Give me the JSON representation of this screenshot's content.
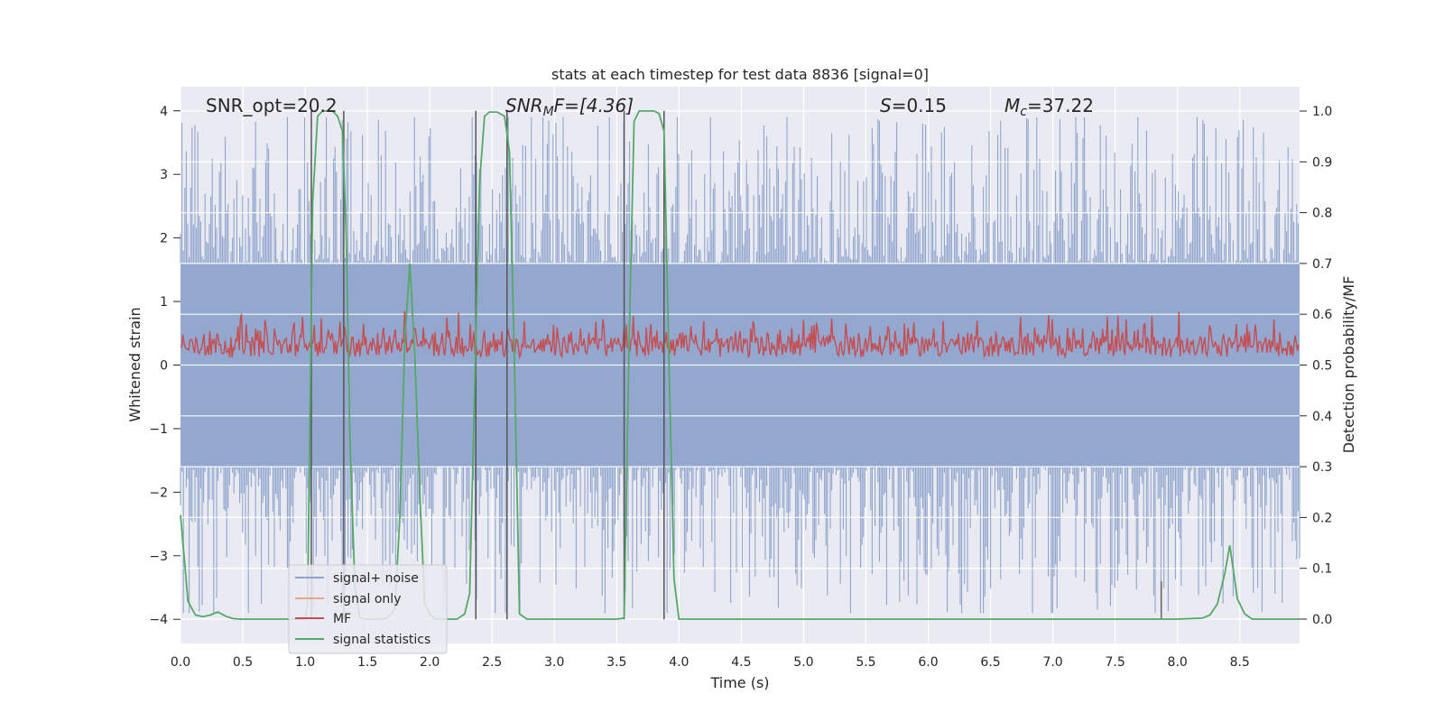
{
  "chart_data": {
    "type": "line",
    "title": "stats at each timestep for test data 8836 [signal=0]",
    "xlabel": "Time (s)",
    "ylabel": "Whitened strain",
    "y2label": "Detection probability/MF",
    "xlim": [
      0.0,
      8.98
    ],
    "ylim": [
      -4.38,
      4.38
    ],
    "y2lim": [
      -0.048,
      1.048
    ],
    "x_ticks": [
      "0.0",
      "0.5",
      "1.0",
      "1.5",
      "2.0",
      "2.5",
      "3.0",
      "3.5",
      "4.0",
      "4.5",
      "5.0",
      "5.5",
      "6.0",
      "6.5",
      "7.0",
      "7.5",
      "8.0",
      "8.5"
    ],
    "y_ticks": [
      "4",
      "3",
      "2",
      "1",
      "0",
      "−1",
      "−2",
      "−3",
      "−4"
    ],
    "y2_ticks": [
      "1.0",
      "0.9",
      "0.8",
      "0.7",
      "0.6",
      "0.5",
      "0.4",
      "0.3",
      "0.2",
      "0.1",
      "0.0"
    ],
    "annotations": {
      "snr_opt": "SNR_opt=20.2",
      "snr_mf_base": "SNR",
      "snr_mf_sub": "M",
      "snr_mf_rest": "F=[4.36]",
      "s_sym": "S",
      "s_val": "=0.15",
      "mc_base": "M",
      "mc_sub": "c",
      "mc_val": "=37.22"
    },
    "legend": [
      {
        "label": "signal+ noise",
        "color": "#8fa4cc"
      },
      {
        "label": "signal only",
        "color": "#e8a78a"
      },
      {
        "label": "MF",
        "color": "#c44e52"
      },
      {
        "label": "signal statistics",
        "color": "#55a868"
      }
    ],
    "series": [
      {
        "name": "signal statistics",
        "axis": "right",
        "color": "#55a868",
        "x": [
          0.0,
          0.06,
          0.12,
          0.18,
          0.24,
          0.3,
          0.36,
          0.42,
          0.48,
          0.54,
          0.6,
          0.66,
          0.72,
          0.78,
          0.84,
          0.9,
          0.96,
          1.0,
          1.02,
          1.06,
          1.1,
          1.14,
          1.18,
          1.22,
          1.26,
          1.3,
          1.33,
          1.36,
          1.4,
          1.44,
          1.48,
          1.54,
          1.6,
          1.66,
          1.72,
          1.76,
          1.8,
          1.84,
          1.88,
          1.92,
          1.96,
          2.0,
          2.04,
          2.1,
          2.16,
          2.22,
          2.28,
          2.32,
          2.36,
          2.4,
          2.44,
          2.48,
          2.54,
          2.6,
          2.64,
          2.68,
          2.72,
          2.78,
          2.84,
          2.9,
          3.0,
          3.1,
          3.2,
          3.3,
          3.4,
          3.5,
          3.56,
          3.6,
          3.64,
          3.68,
          3.72,
          3.76,
          3.8,
          3.84,
          3.88,
          3.92,
          3.96,
          4.0,
          4.1,
          4.5,
          5.0,
          5.5,
          6.0,
          6.5,
          7.0,
          7.5,
          8.0,
          8.2,
          8.26,
          8.32,
          8.38,
          8.42,
          8.48,
          8.54,
          8.6,
          8.7,
          8.8,
          8.98
        ],
        "values": [
          0.205,
          0.035,
          0.008,
          0.005,
          0.008,
          0.014,
          0.006,
          0.001,
          0.0,
          0.0,
          0.0,
          0.0,
          0.0,
          0.0,
          0.0,
          0.0,
          0.0,
          0.0,
          0.03,
          0.82,
          0.99,
          1.0,
          1.0,
          1.0,
          0.99,
          0.96,
          0.75,
          0.35,
          0.06,
          0.003,
          0.0,
          0.0,
          0.0,
          0.002,
          0.02,
          0.2,
          0.55,
          0.7,
          0.52,
          0.25,
          0.03,
          0.01,
          0.0,
          0.0,
          0.0,
          0.0,
          0.01,
          0.05,
          0.45,
          0.86,
          0.99,
          0.998,
          0.998,
          0.99,
          0.92,
          0.5,
          0.01,
          0.0,
          0.0,
          0.0,
          0.0,
          0.0,
          0.0,
          0.0,
          0.0,
          0.0,
          0.002,
          0.55,
          0.98,
          1.0,
          1.0,
          1.0,
          1.0,
          0.995,
          0.96,
          0.5,
          0.08,
          0.0,
          0.0,
          0.0,
          0.0,
          0.0,
          0.0,
          0.0,
          0.0,
          0.0,
          0.0,
          0.002,
          0.008,
          0.03,
          0.09,
          0.145,
          0.04,
          0.01,
          0.0,
          0.0,
          0.0,
          0.0
        ]
      },
      {
        "name": "signal+ noise",
        "axis": "left",
        "color": "#8fa4cc",
        "description": "whitened strain noise band, approx symmetric around 0",
        "amplitude_dense": 1.6,
        "amplitude_max": 3.9
      },
      {
        "name": "MF",
        "axis": "left",
        "color": "#c44e52",
        "description": "matched filter output, approx between 0 and 1",
        "range": [
          0.0,
          1.0
        ]
      }
    ],
    "vlines": [
      1.05,
      1.31,
      2.37,
      2.62,
      3.56,
      3.88
    ],
    "extra_dark_line": {
      "x": 7.87,
      "y": [
        -4.0,
        -3.4
      ]
    }
  }
}
